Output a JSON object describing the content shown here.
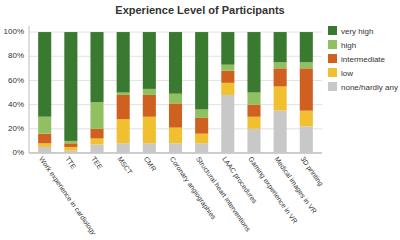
{
  "chart_data": {
    "type": "bar",
    "title": "Experience Level of Participants",
    "stacked": true,
    "categories": [
      "Work experience in cardiology",
      "TTE",
      "TEE",
      "MSCT",
      "CMR",
      "Coronary angiographies",
      "Structural heart interventions",
      "LAAC procedures",
      "Gaming experience in VR",
      "Medical images in VR",
      "3D printing"
    ],
    "series": [
      {
        "name": "none/hardly any",
        "color": "#c8c8c8",
        "values": [
          0.05,
          0.02,
          0.07,
          0.08,
          0.08,
          0.08,
          0.08,
          0.48,
          0.2,
          0.35,
          0.22
        ]
      },
      {
        "name": "low",
        "color": "#f0c030",
        "values": [
          0.03,
          0.03,
          0.05,
          0.2,
          0.22,
          0.13,
          0.08,
          0.1,
          0.1,
          0.2,
          0.13
        ]
      },
      {
        "name": "intermediate",
        "color": "#d06020",
        "values": [
          0.08,
          0.03,
          0.08,
          0.2,
          0.18,
          0.2,
          0.13,
          0.1,
          0.1,
          0.15,
          0.35
        ]
      },
      {
        "name": "high",
        "color": "#90c060",
        "values": [
          0.14,
          0.02,
          0.22,
          0.02,
          0.05,
          0.08,
          0.07,
          0.05,
          0.1,
          0.05,
          0.05
        ]
      },
      {
        "name": "very high",
        "color": "#3a7a30",
        "values": [
          0.7,
          0.9,
          0.58,
          0.5,
          0.47,
          0.51,
          0.64,
          0.27,
          0.5,
          0.25,
          0.25
        ]
      }
    ],
    "ylim": [
      0,
      1.05
    ],
    "yticks": [
      {
        "value": 0.0,
        "label": "0%"
      },
      {
        "value": 0.2,
        "label": "20%"
      },
      {
        "value": 0.4,
        "label": "40%"
      },
      {
        "value": 0.6,
        "label": "60%"
      },
      {
        "value": 0.8,
        "label": "80%"
      },
      {
        "value": 1.0,
        "label": "100%"
      }
    ],
    "grid": true,
    "legend": "right"
  }
}
